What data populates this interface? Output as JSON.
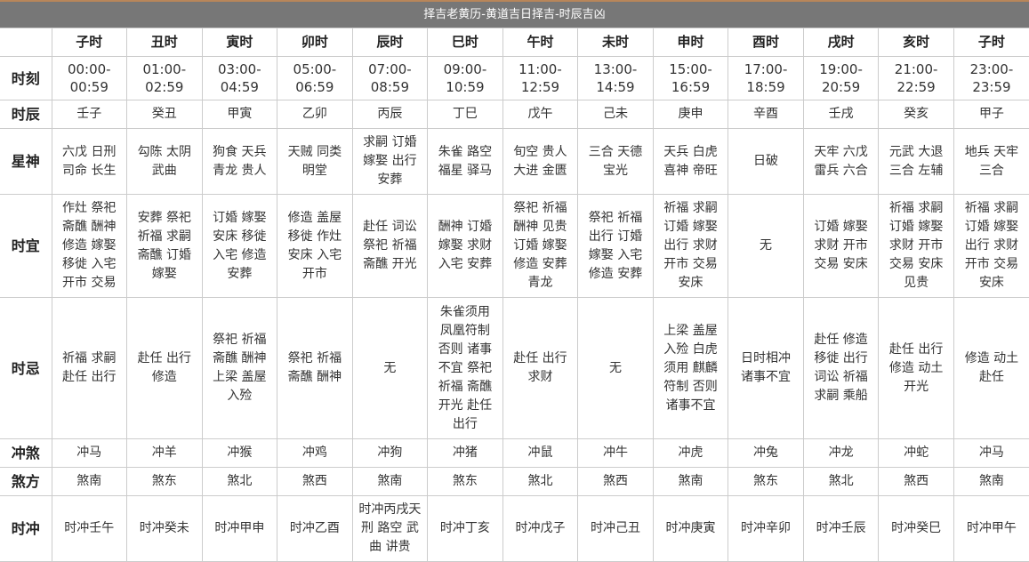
{
  "title": "择吉老黄历-黄道吉日择吉-时辰吉凶",
  "columns": [
    "子时",
    "丑时",
    "寅时",
    "卯时",
    "辰时",
    "巳时",
    "午时",
    "未时",
    "申时",
    "酉时",
    "戌时",
    "亥时",
    "子时"
  ],
  "rows": [
    {
      "key": "time",
      "label": "时刻",
      "height": 49,
      "values": [
        "00:00-\n00:59",
        "01:00-\n02:59",
        "03:00-\n04:59",
        "05:00-\n06:59",
        "07:00-\n08:59",
        "09:00-\n10:59",
        "11:00-\n12:59",
        "13:00-\n14:59",
        "15:00-\n16:59",
        "17:00-\n18:59",
        "19:00-\n20:59",
        "21:00-\n22:59",
        "23:00-\n23:59"
      ]
    },
    {
      "key": "ganzhi",
      "label": "时辰",
      "height": 32,
      "values": [
        "壬子",
        "癸丑",
        "甲寅",
        "乙卯",
        "丙辰",
        "丁巳",
        "戊午",
        "己未",
        "庚申",
        "辛酉",
        "壬戌",
        "癸亥",
        "甲子"
      ]
    },
    {
      "key": "xingshen",
      "label": "星神",
      "height": 74,
      "values": [
        "六戊 日刑\n司命 长生",
        "勾陈 太阴\n武曲",
        "狗食 天兵\n青龙 贵人",
        "天贼 同类\n明堂",
        "求嗣 订婚\n嫁娶 出行\n安葬",
        "朱雀 路空\n福星 驿马",
        "旬空 贵人\n大进 金匮",
        "三合 天德\n宝光",
        "天兵 白虎\n喜神 帝旺",
        "日破",
        "天牢 六戊\n雷兵 六合",
        "元武 大退\n三合 左辅",
        "地兵 天牢\n三合"
      ]
    },
    {
      "key": "yi",
      "label": "时宜",
      "height": 116,
      "values": [
        "作灶 祭祀\n斋醮 酬神\n修造 嫁娶\n移徙 入宅\n开市 交易",
        "安葬 祭祀\n祈福 求嗣\n斋醮 订婚\n嫁娶",
        "订婚 嫁娶\n安床 移徙\n入宅 修造\n安葬",
        "修造 盖屋\n移徙 作灶\n安床 入宅\n开市",
        "赴任 词讼\n祭祀 祈福\n斋醮 开光",
        "酬神 订婚\n嫁娶 求财\n入宅 安葬",
        "祭祀 祈福\n酬神 见贵\n订婚 嫁娶\n修造 安葬\n青龙",
        "祭祀 祈福\n出行 订婚\n嫁娶 入宅\n修造 安葬",
        "祈福 求嗣\n订婚 嫁娶\n出行 求财\n开市 交易\n安床",
        "无",
        "订婚 嫁娶\n求财 开市\n交易 安床",
        "祈福 求嗣\n订婚 嫁娶\n求财 开市\n交易 安床\n见贵",
        "祈福 求嗣\n订婚 嫁娶\n出行 求财\n开市 交易\n安床"
      ]
    },
    {
      "key": "ji",
      "label": "时忌",
      "height": 159,
      "values": [
        "祈福 求嗣\n赴任 出行",
        "赴任 出行\n修造",
        "祭祀 祈福\n斋醮 酬神\n上梁 盖屋\n入殓",
        "祭祀 祈福\n斋醮 酬神",
        "无",
        "朱雀须用\n凤凰符制\n否则 诸事\n不宜 祭祀\n祈福 斋醮\n开光 赴任\n出行",
        "赴任 出行\n求财",
        "无",
        "上梁 盖屋\n入殓 白虎\n须用 麒麟\n符制 否则\n诸事不宜",
        "日时相冲\n诸事不宜",
        "赴任 修造\n移徙 出行\n词讼 祈福\n求嗣 乘船",
        "赴任 出行\n修造 动土\n开光",
        "修造 动土\n赴任"
      ]
    },
    {
      "key": "chongsha",
      "label": "冲煞",
      "height": 32,
      "values": [
        "冲马",
        "冲羊",
        "冲猴",
        "冲鸡",
        "冲狗",
        "冲猪",
        "冲鼠",
        "冲牛",
        "冲虎",
        "冲兔",
        "冲龙",
        "冲蛇",
        "冲马"
      ]
    },
    {
      "key": "shafang",
      "label": "煞方",
      "height": 32,
      "values": [
        "煞南",
        "煞东",
        "煞北",
        "煞西",
        "煞南",
        "煞东",
        "煞北",
        "煞西",
        "煞南",
        "煞东",
        "煞北",
        "煞西",
        "煞南"
      ]
    },
    {
      "key": "shichong",
      "label": "时冲",
      "height": 74,
      "values": [
        "时冲壬午",
        "时冲癸未",
        "时冲甲申",
        "时冲乙酉",
        "时冲丙戌天\n刑 路空 武\n曲 讲贵",
        "时冲丁亥",
        "时冲戊子",
        "时冲己丑",
        "时冲庚寅",
        "时冲辛卯",
        "时冲壬辰",
        "时冲癸巳",
        "时冲甲午"
      ]
    }
  ]
}
